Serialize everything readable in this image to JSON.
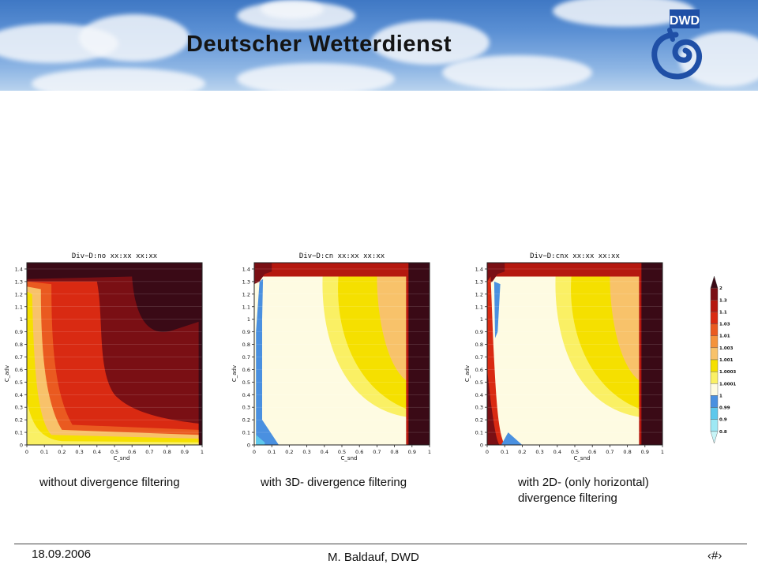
{
  "banner": {
    "title": "Deutscher Wetterdienst",
    "logo_text": "DWD",
    "colors": {
      "sky_top": "#3f78c4",
      "logo_blue": "#1f4fa6"
    }
  },
  "chart_data": [
    {
      "type": "heatmap",
      "title": "Div−D:no  xx:xx  xx:xx",
      "xlabel": "C_snd",
      "ylabel": "C_adv",
      "xlim": [
        0,
        1
      ],
      "ylim": [
        0,
        1.45
      ],
      "x_ticks": [
        "0",
        "0.1",
        "0.2",
        "0.3",
        "0.4",
        "0.5",
        "0.6",
        "0.7",
        "0.8",
        "0.9",
        "1"
      ],
      "y_ticks": [
        "0",
        "0.1",
        "0.2",
        "0.3",
        "0.4",
        "0.5",
        "0.6",
        "0.7",
        "0.8",
        "0.9",
        "1",
        "1.1",
        "1.2",
        "1.3",
        "1.4"
      ],
      "stable_limit_x": 1.0,
      "caption": "without divergence filtering"
    },
    {
      "type": "heatmap",
      "title": "Div−D:cn  xx:xx  xx:xx",
      "xlabel": "C_snd",
      "ylabel": "C_adv",
      "xlim": [
        0,
        1
      ],
      "ylim": [
        0,
        1.45
      ],
      "x_ticks": [
        "0",
        "0.1",
        "0.2",
        "0.3",
        "0.4",
        "0.5",
        "0.6",
        "0.7",
        "0.8",
        "0.9",
        "1"
      ],
      "y_ticks": [
        "0",
        "0.1",
        "0.2",
        "0.3",
        "0.4",
        "0.5",
        "0.6",
        "0.7",
        "0.8",
        "0.9",
        "1",
        "1.1",
        "1.2",
        "1.3",
        "1.4"
      ],
      "stable_limit_x": 0.88,
      "caption": "with 3D- divergence filtering"
    },
    {
      "type": "heatmap",
      "title": "Div−D:cnx  xx:xx  xx:xx",
      "xlabel": "C_snd",
      "ylabel": "C_adv",
      "xlim": [
        0,
        1
      ],
      "ylim": [
        0,
        1.45
      ],
      "x_ticks": [
        "0",
        "0.1",
        "0.2",
        "0.3",
        "0.4",
        "0.5",
        "0.6",
        "0.7",
        "0.8",
        "0.9",
        "1"
      ],
      "y_ticks": [
        "0",
        "0.1",
        "0.2",
        "0.3",
        "0.4",
        "0.5",
        "0.6",
        "0.7",
        "0.8",
        "0.9",
        "1",
        "1.1",
        "1.2",
        "1.3",
        "1.4"
      ],
      "stable_limit_x": 0.88,
      "caption": "with 2D- (only horizontal) divergence filtering"
    }
  ],
  "colorbar": {
    "levels": [
      "2",
      "1.3",
      "1.1",
      "1.03",
      "1.01",
      "1.003",
      "1.001",
      "1.0003",
      "1.0001",
      "1",
      "0.99",
      "0.9",
      "0.8"
    ],
    "colors": [
      "#3a0a16",
      "#7a0f14",
      "#b5180f",
      "#d92a12",
      "#ea5a20",
      "#f4933c",
      "#f8c26a",
      "#f5e000",
      "#faf064",
      "#fefbe2",
      "#4a90e0",
      "#5ec8ec",
      "#9ee8f4",
      "#c8f5f8"
    ]
  },
  "captions": {
    "left": "without divergence filtering",
    "middle": "with 3D- divergence filtering",
    "right_line1": "with 2D- (only horizontal)",
    "right_line2": "divergence filtering"
  },
  "footer": {
    "date": "18.09.2006",
    "author": "M. Baldauf,  DWD",
    "slide_number": "‹#›"
  }
}
